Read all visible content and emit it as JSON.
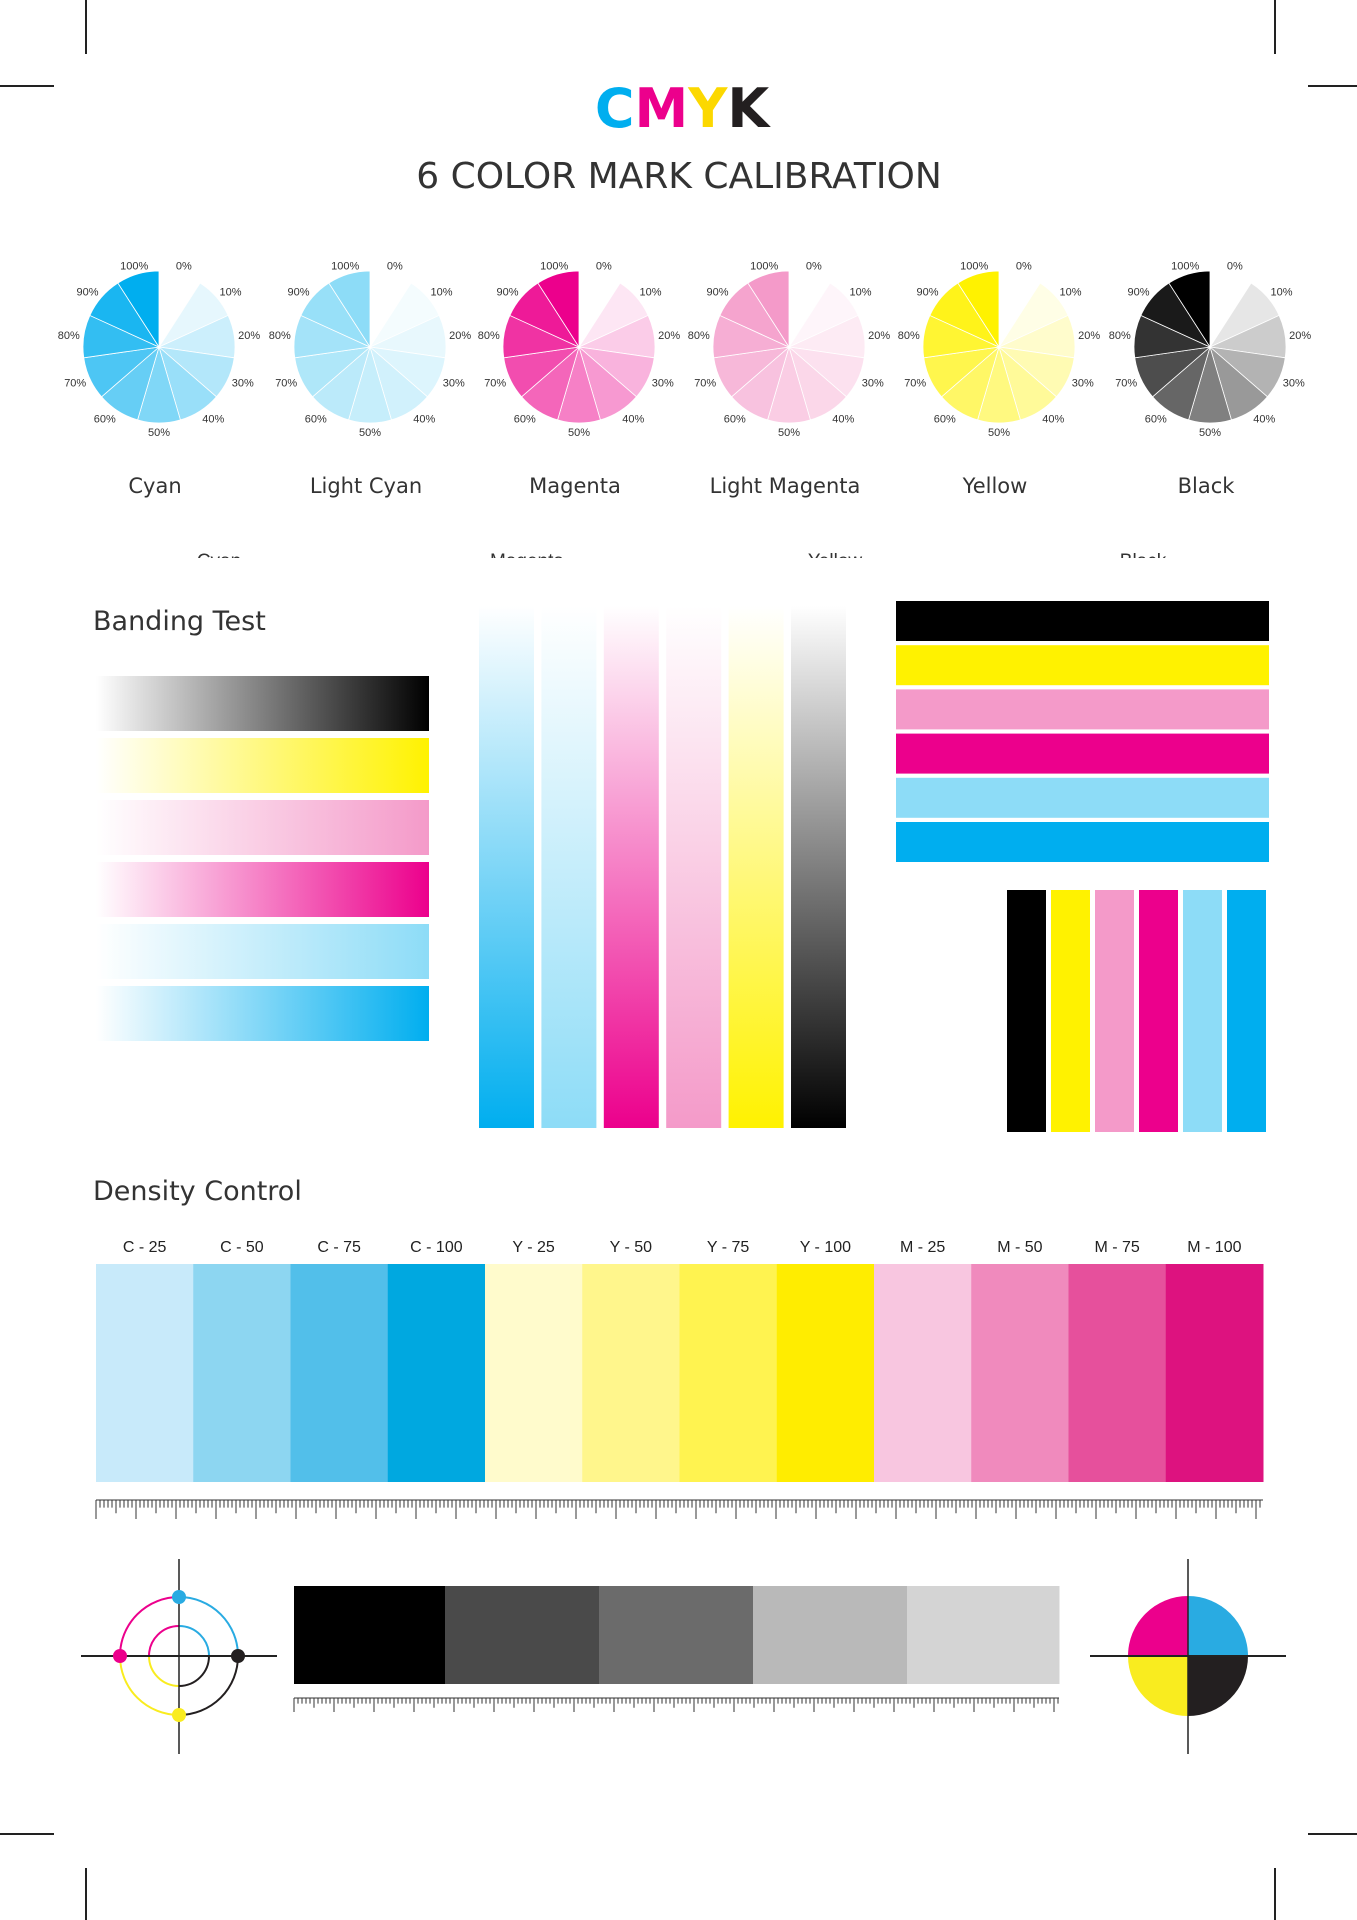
{
  "title": {
    "letters": [
      {
        "char": "C",
        "color": "#00aeef"
      },
      {
        "char": "M",
        "color": "#ec008c"
      },
      {
        "char": "Y",
        "color": "#fcd800"
      },
      {
        "char": "K",
        "color": "#231f20"
      }
    ],
    "subtitle": "6 COLOR MARK CALIBRATION"
  },
  "pies": {
    "percent_labels": [
      "0%",
      "10%",
      "20%",
      "30%",
      "40%",
      "50%",
      "60%",
      "70%",
      "80%",
      "90%",
      "100%"
    ],
    "items": [
      {
        "name": "Cyan",
        "color": "#00aeef"
      },
      {
        "name": "Light Cyan",
        "color": "#8ddcf7"
      },
      {
        "name": "Magenta",
        "color": "#ec008c"
      },
      {
        "name": "Light Magenta",
        "color": "#f49ac9"
      },
      {
        "name": "Yellow",
        "color": "#fff200"
      },
      {
        "name": "Black",
        "color": "#000000"
      }
    ]
  },
  "cut_labels": [
    "Cyan",
    "Magenta",
    "Yellow",
    "Black"
  ],
  "banding": {
    "title": "Banding Test",
    "horizontal_gradients": [
      "#000000",
      "#fff200",
      "#f49ac9",
      "#ec008c",
      "#8ddcf7",
      "#00aeef"
    ],
    "vertical_gradients": [
      "#00aeef",
      "#8ddcf7",
      "#ec008c",
      "#f49ac9",
      "#fff200",
      "#000000"
    ],
    "solid_rows": [
      "#000000",
      "#fff200",
      "#f49ac9",
      "#ec008c",
      "#8ddcf7",
      "#00aeef"
    ],
    "solid_columns": [
      "#000000",
      "#fff200",
      "#f49ac9",
      "#ec008c",
      "#8ddcf7",
      "#00aeef"
    ]
  },
  "density": {
    "title": "Density Control",
    "patches": [
      {
        "label": "C - 25",
        "color": "#c8eafa"
      },
      {
        "label": "C - 50",
        "color": "#8dd6f1"
      },
      {
        "label": "C - 75",
        "color": "#52bfea"
      },
      {
        "label": "C - 100",
        "color": "#00a8e0"
      },
      {
        "label": "Y - 25",
        "color": "#fffbcc"
      },
      {
        "label": "Y - 50",
        "color": "#fff68c"
      },
      {
        "label": "Y - 75",
        "color": "#fff350"
      },
      {
        "label": "Y - 100",
        "color": "#ffed00"
      },
      {
        "label": "M - 25",
        "color": "#f8c6e0"
      },
      {
        "label": "M - 50",
        "color": "#f08abd"
      },
      {
        "label": "M - 75",
        "color": "#e6509c"
      },
      {
        "label": "M - 100",
        "color": "#dd127f"
      }
    ]
  },
  "gray_scale": [
    "#000000",
    "#4a4a4a",
    "#6b6b6b",
    "#b9b9b9",
    "#d4d4d4"
  ],
  "registration": {
    "cyan": "#29abe2",
    "magenta": "#ec008c",
    "yellow": "#f9ec1f",
    "black": "#231f20"
  }
}
